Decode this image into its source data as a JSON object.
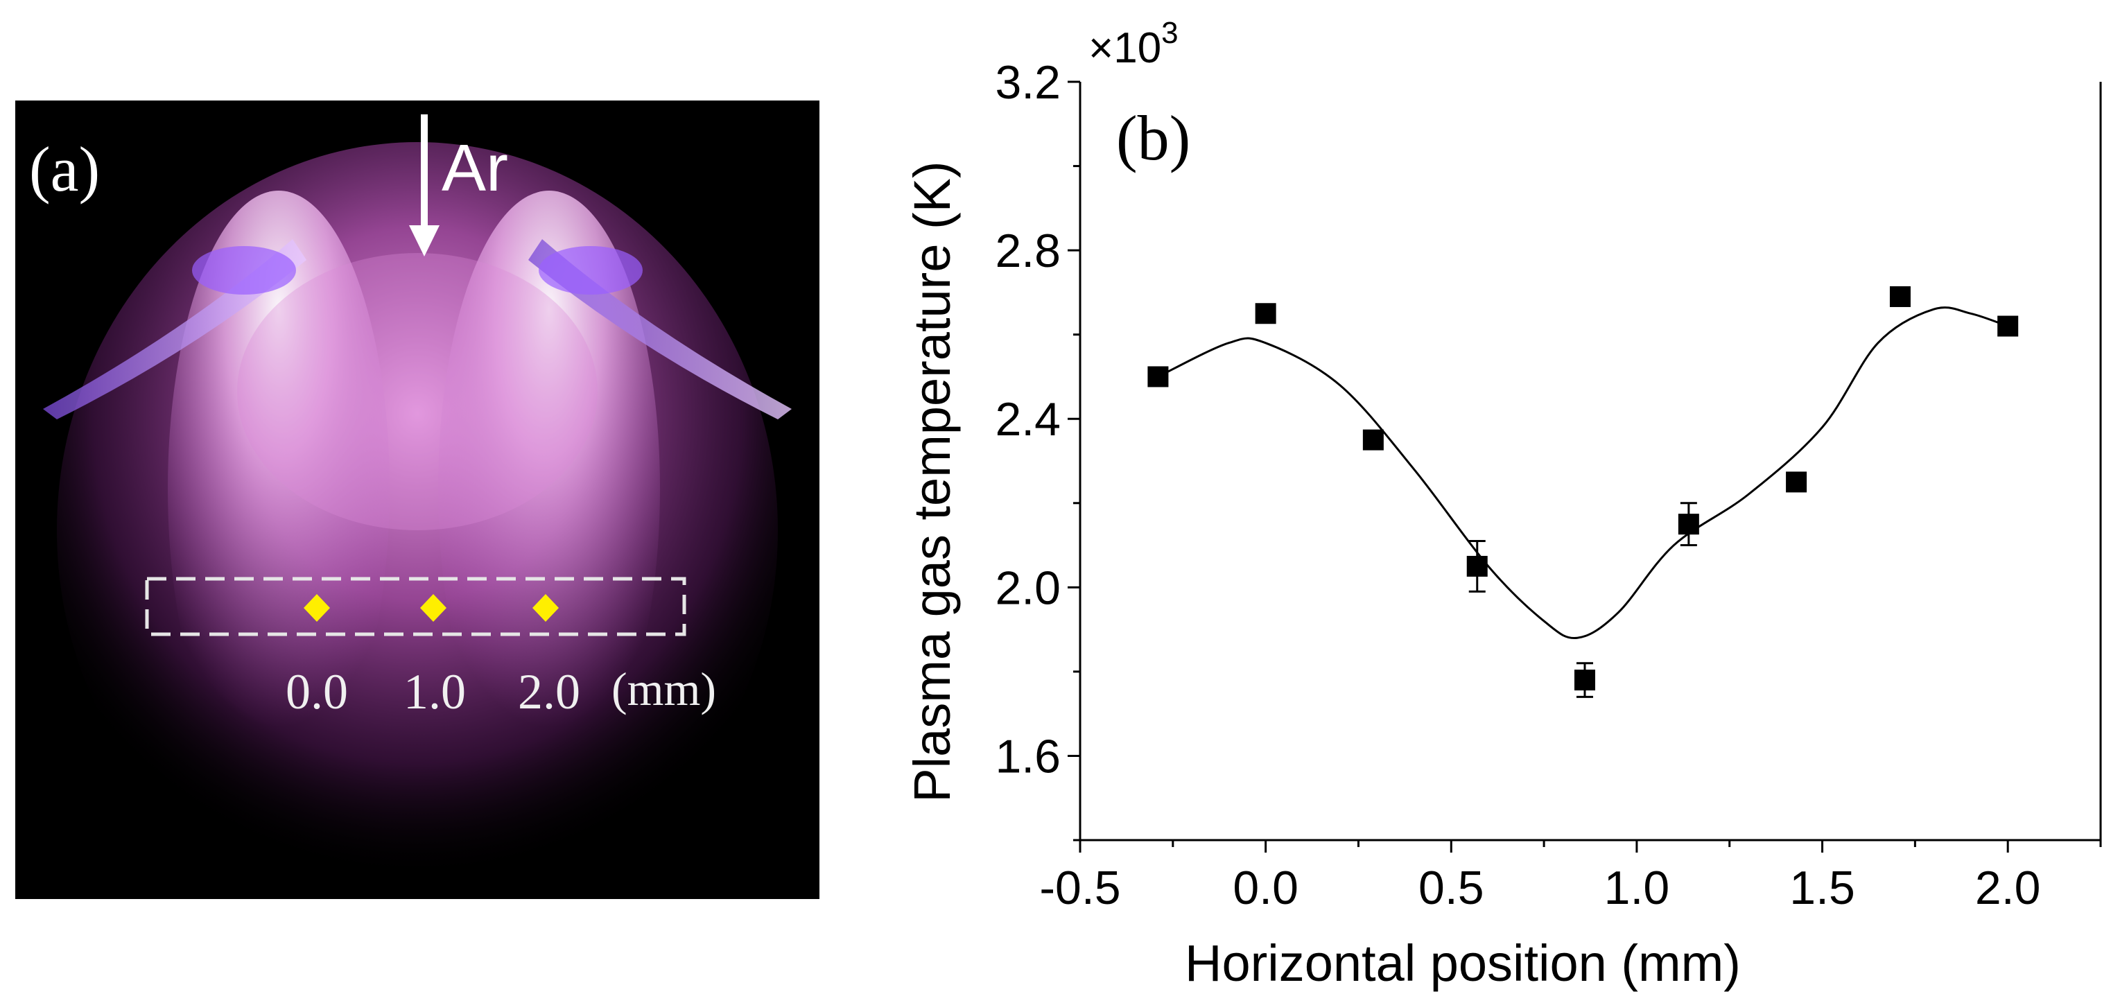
{
  "panel_a": {
    "label": "(a)",
    "gas_label": "Ar",
    "unit": "(mm)",
    "positions": [
      "0.0",
      "1.0",
      "2.0"
    ],
    "colors": {
      "background": "#000000",
      "plasma": "#e070e0",
      "marker": "#ffee00",
      "box": "#dddddd"
    }
  },
  "chart_data": {
    "type": "scatter",
    "panel_label": "(b)",
    "xlabel": "Horizontal position (mm)",
    "ylabel": "Plasma gas temperature (K)",
    "y_multiplier": "×10",
    "y_multiplier_exp": "3",
    "xlim": [
      -0.5,
      2.25
    ],
    "ylim": [
      1.4,
      3.2
    ],
    "xticks": [
      -0.5,
      0.0,
      0.5,
      1.0,
      1.5,
      2.0
    ],
    "xtick_labels": [
      "-0.5",
      "0.0",
      "0.5",
      "1.0",
      "1.5",
      "2.0"
    ],
    "yticks": [
      1.6,
      2.0,
      2.4,
      2.8,
      3.2
    ],
    "ytick_labels": [
      "1.6",
      "2.0",
      "2.4",
      "2.8",
      "3.2"
    ],
    "grid": false,
    "series": [
      {
        "marker": "square",
        "color": "#000000",
        "x": [
          -0.29,
          0.0,
          0.29,
          0.57,
          0.86,
          1.14,
          1.43,
          1.71,
          2.0
        ],
        "y": [
          2.5,
          2.65,
          2.35,
          2.05,
          1.78,
          2.15,
          2.25,
          2.69,
          2.62
        ],
        "y_err": [
          0.0,
          0.0,
          0.0,
          0.06,
          0.04,
          0.05,
          0.0,
          0.0,
          0.0
        ]
      }
    ],
    "fit_curve": {
      "color": "#000000",
      "x": [
        -0.29,
        -0.1,
        0.0,
        0.2,
        0.4,
        0.6,
        0.75,
        0.84,
        0.95,
        1.1,
        1.3,
        1.5,
        1.65,
        1.8,
        1.9,
        2.0
      ],
      "y": [
        2.5,
        2.58,
        2.58,
        2.48,
        2.28,
        2.05,
        1.92,
        1.88,
        1.94,
        2.1,
        2.22,
        2.38,
        2.58,
        2.66,
        2.65,
        2.62
      ]
    }
  }
}
